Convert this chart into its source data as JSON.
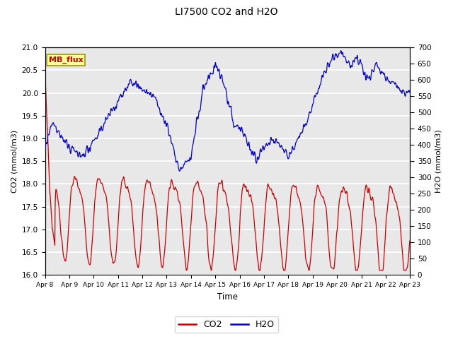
{
  "title": "LI7500 CO2 and H2O",
  "xlabel": "Time",
  "ylabel_left": "CO2 (mmol/m3)",
  "ylabel_right": "H2O (mmol/m3)",
  "ylim_left": [
    16.0,
    21.0
  ],
  "ylim_right": [
    0,
    700
  ],
  "yticks_left": [
    16.0,
    16.5,
    17.0,
    17.5,
    18.0,
    18.5,
    19.0,
    19.5,
    20.0,
    20.5,
    21.0
  ],
  "yticks_right": [
    0,
    50,
    100,
    150,
    200,
    250,
    300,
    350,
    400,
    450,
    500,
    550,
    600,
    650,
    700
  ],
  "xtick_labels": [
    "Apr 8",
    "Apr 9",
    "Apr 10",
    "Apr 11",
    "Apr 12",
    "Apr 13",
    "Apr 14",
    "Apr 15",
    "Apr 16",
    "Apr 17",
    "Apr 18",
    "Apr 19",
    "Apr 20",
    "Apr 21",
    "Apr 22",
    "Apr 23"
  ],
  "co2_color": "#cc0000",
  "h2o_color": "#0000cc",
  "background_color": "#e8e8e8",
  "grid_color": "#ffffff",
  "annotation_text": "MB_flux",
  "annotation_bg": "#ffff99",
  "annotation_border": "#999900"
}
